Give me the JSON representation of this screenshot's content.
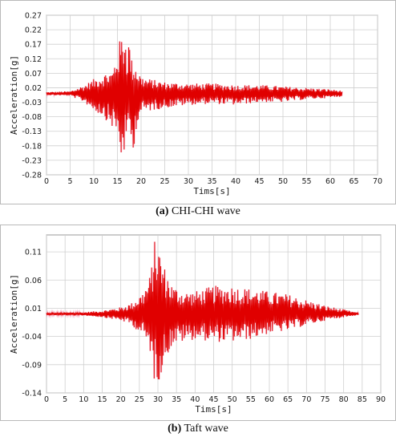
{
  "chart_data": [
    {
      "type": "line",
      "xlabel": "Tims[s]",
      "ylabel": "Acceleration[g]",
      "xlim": [
        0,
        70
      ],
      "ylim": [
        -0.28,
        0.27
      ],
      "xticks": [
        "0",
        "5",
        "10",
        "15",
        "20",
        "25",
        "30",
        "35",
        "40",
        "45",
        "50",
        "55",
        "60",
        "65",
        "70"
      ],
      "yticks": [
        "0.27",
        "0.22",
        "0.17",
        "0.12",
        "0.07",
        "0.02",
        "-0.03",
        "-0.08",
        "-0.13",
        "-0.18",
        "-0.23",
        "-0.28"
      ],
      "grid": true,
      "color": "#e00000",
      "series": [
        {
          "envelope": {
            "x": [
              0,
              5,
              8,
              10,
              12,
              14,
              15,
              16,
              16.5,
              17,
              17.5,
              18,
              19,
              20,
              22,
              25,
              30,
              35,
              40,
              45,
              50,
              55,
              60,
              62.5
            ],
            "upper": [
              0.005,
              0.008,
              0.03,
              0.05,
              0.07,
              0.08,
              0.16,
              0.21,
              0.25,
              0.15,
              0.2,
              0.12,
              0.1,
              0.06,
              0.05,
              0.04,
              0.035,
              0.035,
              0.03,
              0.03,
              0.025,
              0.02,
              0.015,
              0.01
            ],
            "lower": [
              -0.005,
              -0.008,
              -0.03,
              -0.06,
              -0.08,
              -0.12,
              -0.15,
              -0.25,
              -0.2,
              -0.22,
              -0.1,
              -0.24,
              -0.12,
              -0.07,
              -0.06,
              -0.05,
              -0.04,
              -0.035,
              -0.04,
              -0.03,
              -0.03,
              -0.02,
              -0.015,
              -0.01
            ]
          }
        }
      ],
      "caption_label": "(a)",
      "caption_text": " CHI-CHI wave"
    },
    {
      "type": "line",
      "xlabel": "Tims[s]",
      "ylabel": "Acceleration[g]",
      "xlim": [
        0,
        90
      ],
      "ylim": [
        -0.14,
        0.14
      ],
      "xticks": [
        "0",
        "5",
        "10",
        "15",
        "20",
        "25",
        "30",
        "35",
        "40",
        "45",
        "50",
        "55",
        "60",
        "65",
        "70",
        "75",
        "80",
        "85",
        "90"
      ],
      "yticks": [
        "0.11",
        "0.06",
        "0.01",
        "-0.04",
        "-0.09",
        "-0.14"
      ],
      "grid": true,
      "color": "#e00000",
      "series": [
        {
          "envelope": {
            "x": [
              0,
              10,
              15,
              20,
              23,
              26,
              28,
              29,
              30,
              31,
              32,
              34,
              37,
              40,
              45,
              50,
              55,
              60,
              65,
              70,
              75,
              80,
              84
            ],
            "upper": [
              0.002,
              0.003,
              0.006,
              0.012,
              0.02,
              0.04,
              0.07,
              0.13,
              0.13,
              0.1,
              0.08,
              0.05,
              0.04,
              0.04,
              0.05,
              0.05,
              0.045,
              0.04,
              0.035,
              0.025,
              0.015,
              0.008,
              0.002
            ],
            "lower": [
              -0.002,
              -0.003,
              -0.006,
              -0.012,
              -0.02,
              -0.04,
              -0.07,
              -0.12,
              -0.12,
              -0.11,
              -0.08,
              -0.055,
              -0.05,
              -0.045,
              -0.05,
              -0.05,
              -0.045,
              -0.035,
              -0.03,
              -0.02,
              -0.012,
              -0.006,
              -0.002
            ]
          }
        }
      ],
      "caption_label": "(b)",
      "caption_text": " Taft wave"
    }
  ]
}
